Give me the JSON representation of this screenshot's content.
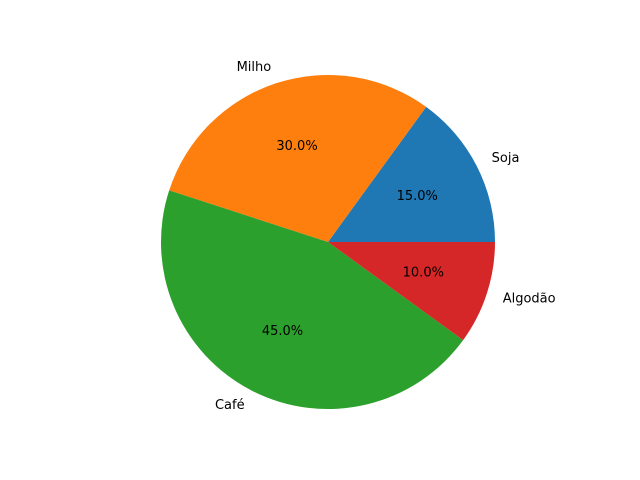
{
  "chart_data": {
    "type": "pie",
    "categories": [
      "Soja",
      "Milho",
      "Café",
      "Algodão"
    ],
    "values": [
      15.0,
      30.0,
      45.0,
      10.0
    ],
    "percent_labels": [
      "15.0%",
      "30.0%",
      "45.0%",
      "10.0%"
    ],
    "colors": [
      "#1f77b4",
      "#ff7f0e",
      "#2ca02c",
      "#d62728"
    ],
    "start_angle_deg": 0,
    "direction": "counterclockwise",
    "legend": "none"
  }
}
